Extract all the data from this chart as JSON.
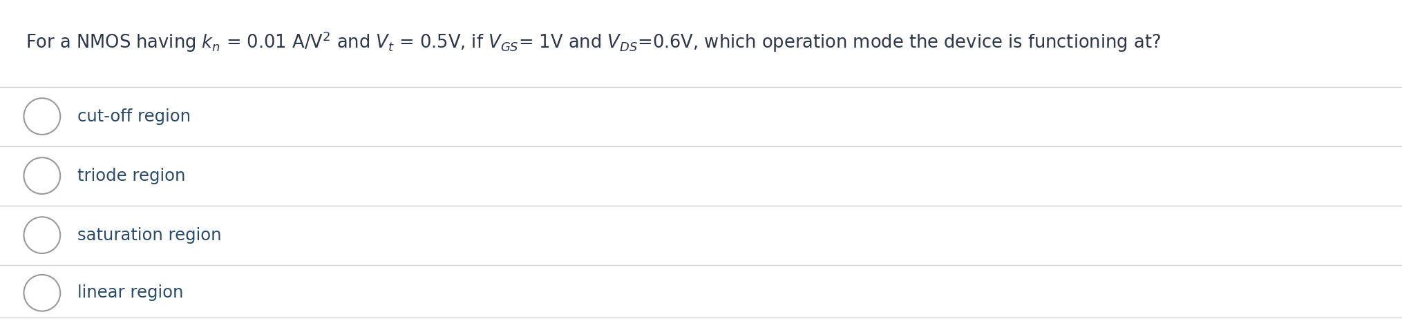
{
  "title_text": "For a NMOS having $k_n$ = 0.01 A/V$^2$ and $V_t$ = 0.5V, if $V_{GS}$= 1V and $V_{DS}$=0.6V, which operation mode the device is functioning at?",
  "options": [
    "cut-off region",
    "triode region",
    "saturation region",
    "linear region"
  ],
  "background_color": "#ffffff",
  "title_color": "#2d3748",
  "option_text_color": "#2a4a6b",
  "line_color": "#d0d0d0",
  "circle_edge_color": "#999999",
  "font_size_title": 18.5,
  "font_size_options": 17.5,
  "fig_width": 20.29,
  "fig_height": 4.65,
  "dpi": 100
}
